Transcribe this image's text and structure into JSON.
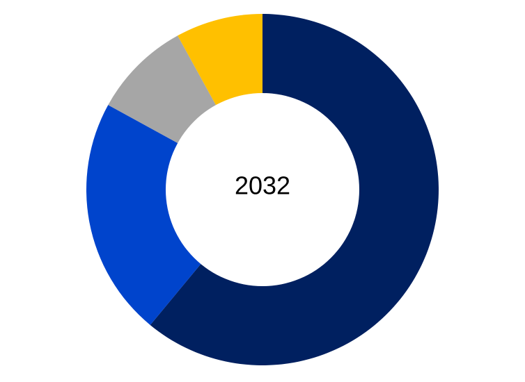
{
  "chart_data": {
    "type": "pie",
    "subtype": "donut",
    "center_label": "2032",
    "start": "12 o'clock",
    "direction": "clockwise",
    "slices": [
      {
        "value": 61,
        "color": "#002060"
      },
      {
        "value": 22,
        "color": "#0044CC"
      },
      {
        "value": 9,
        "color": "#A6A6A6"
      },
      {
        "value": 8,
        "color": "#FFC000"
      }
    ],
    "legend": "none"
  }
}
